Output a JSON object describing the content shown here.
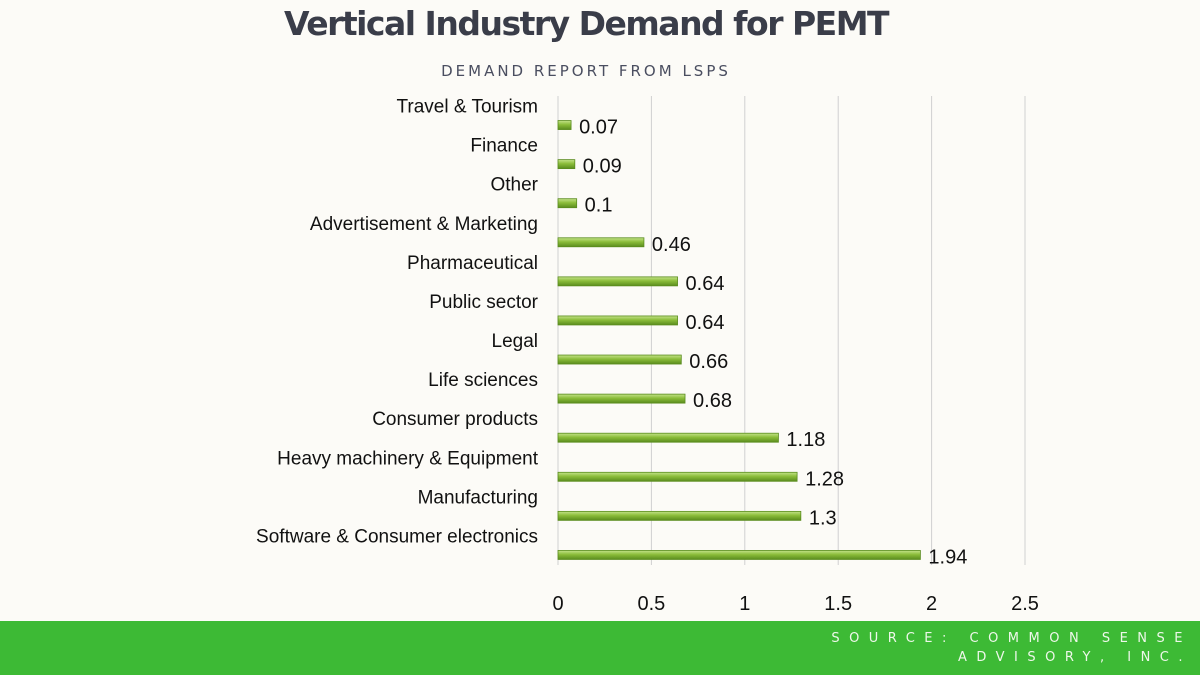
{
  "title": "Vertical Industry Demand for PEMT",
  "subtitle": "DEMAND REPORT FROM LSPS",
  "source": "SOURCE: COMMON SENSE ADVISORY, INC.",
  "colors": {
    "bar": "#8bbd3a",
    "bar_dark": "#5a8c1e",
    "bar_light": "#c4e38a",
    "footer": "#3dba35",
    "grid": "#d0d0d0"
  },
  "chart_data": {
    "type": "bar",
    "orientation": "horizontal",
    "categories": [
      "Travel & Tourism",
      "Finance",
      "Other",
      "Advertisement & Marketing",
      "Pharmaceutical",
      "Public sector ",
      "Legal",
      "Life sciences",
      "Consumer products",
      "Heavy machinery & Equipment",
      "Manufacturing",
      "Software & Consumer electronics"
    ],
    "values": [
      0.07,
      0.09,
      0.1,
      0.46,
      0.64,
      0.64,
      0.66,
      0.68,
      1.18,
      1.28,
      1.3,
      1.94
    ],
    "data_labels": [
      "0.07",
      "0.09",
      "0.1",
      "0.46",
      "0.64",
      "0.64",
      "0.66",
      "0.68",
      "1.18",
      "1.28",
      "1.3",
      "1.94"
    ],
    "xlim": [
      0,
      2.5
    ],
    "xticks": [
      0,
      0.5,
      1,
      1.5,
      2,
      2.5
    ],
    "xtick_labels": [
      "0",
      "0.5",
      "1",
      "1.5",
      "2",
      "2.5"
    ],
    "grid": "vertical",
    "legend": "none"
  }
}
